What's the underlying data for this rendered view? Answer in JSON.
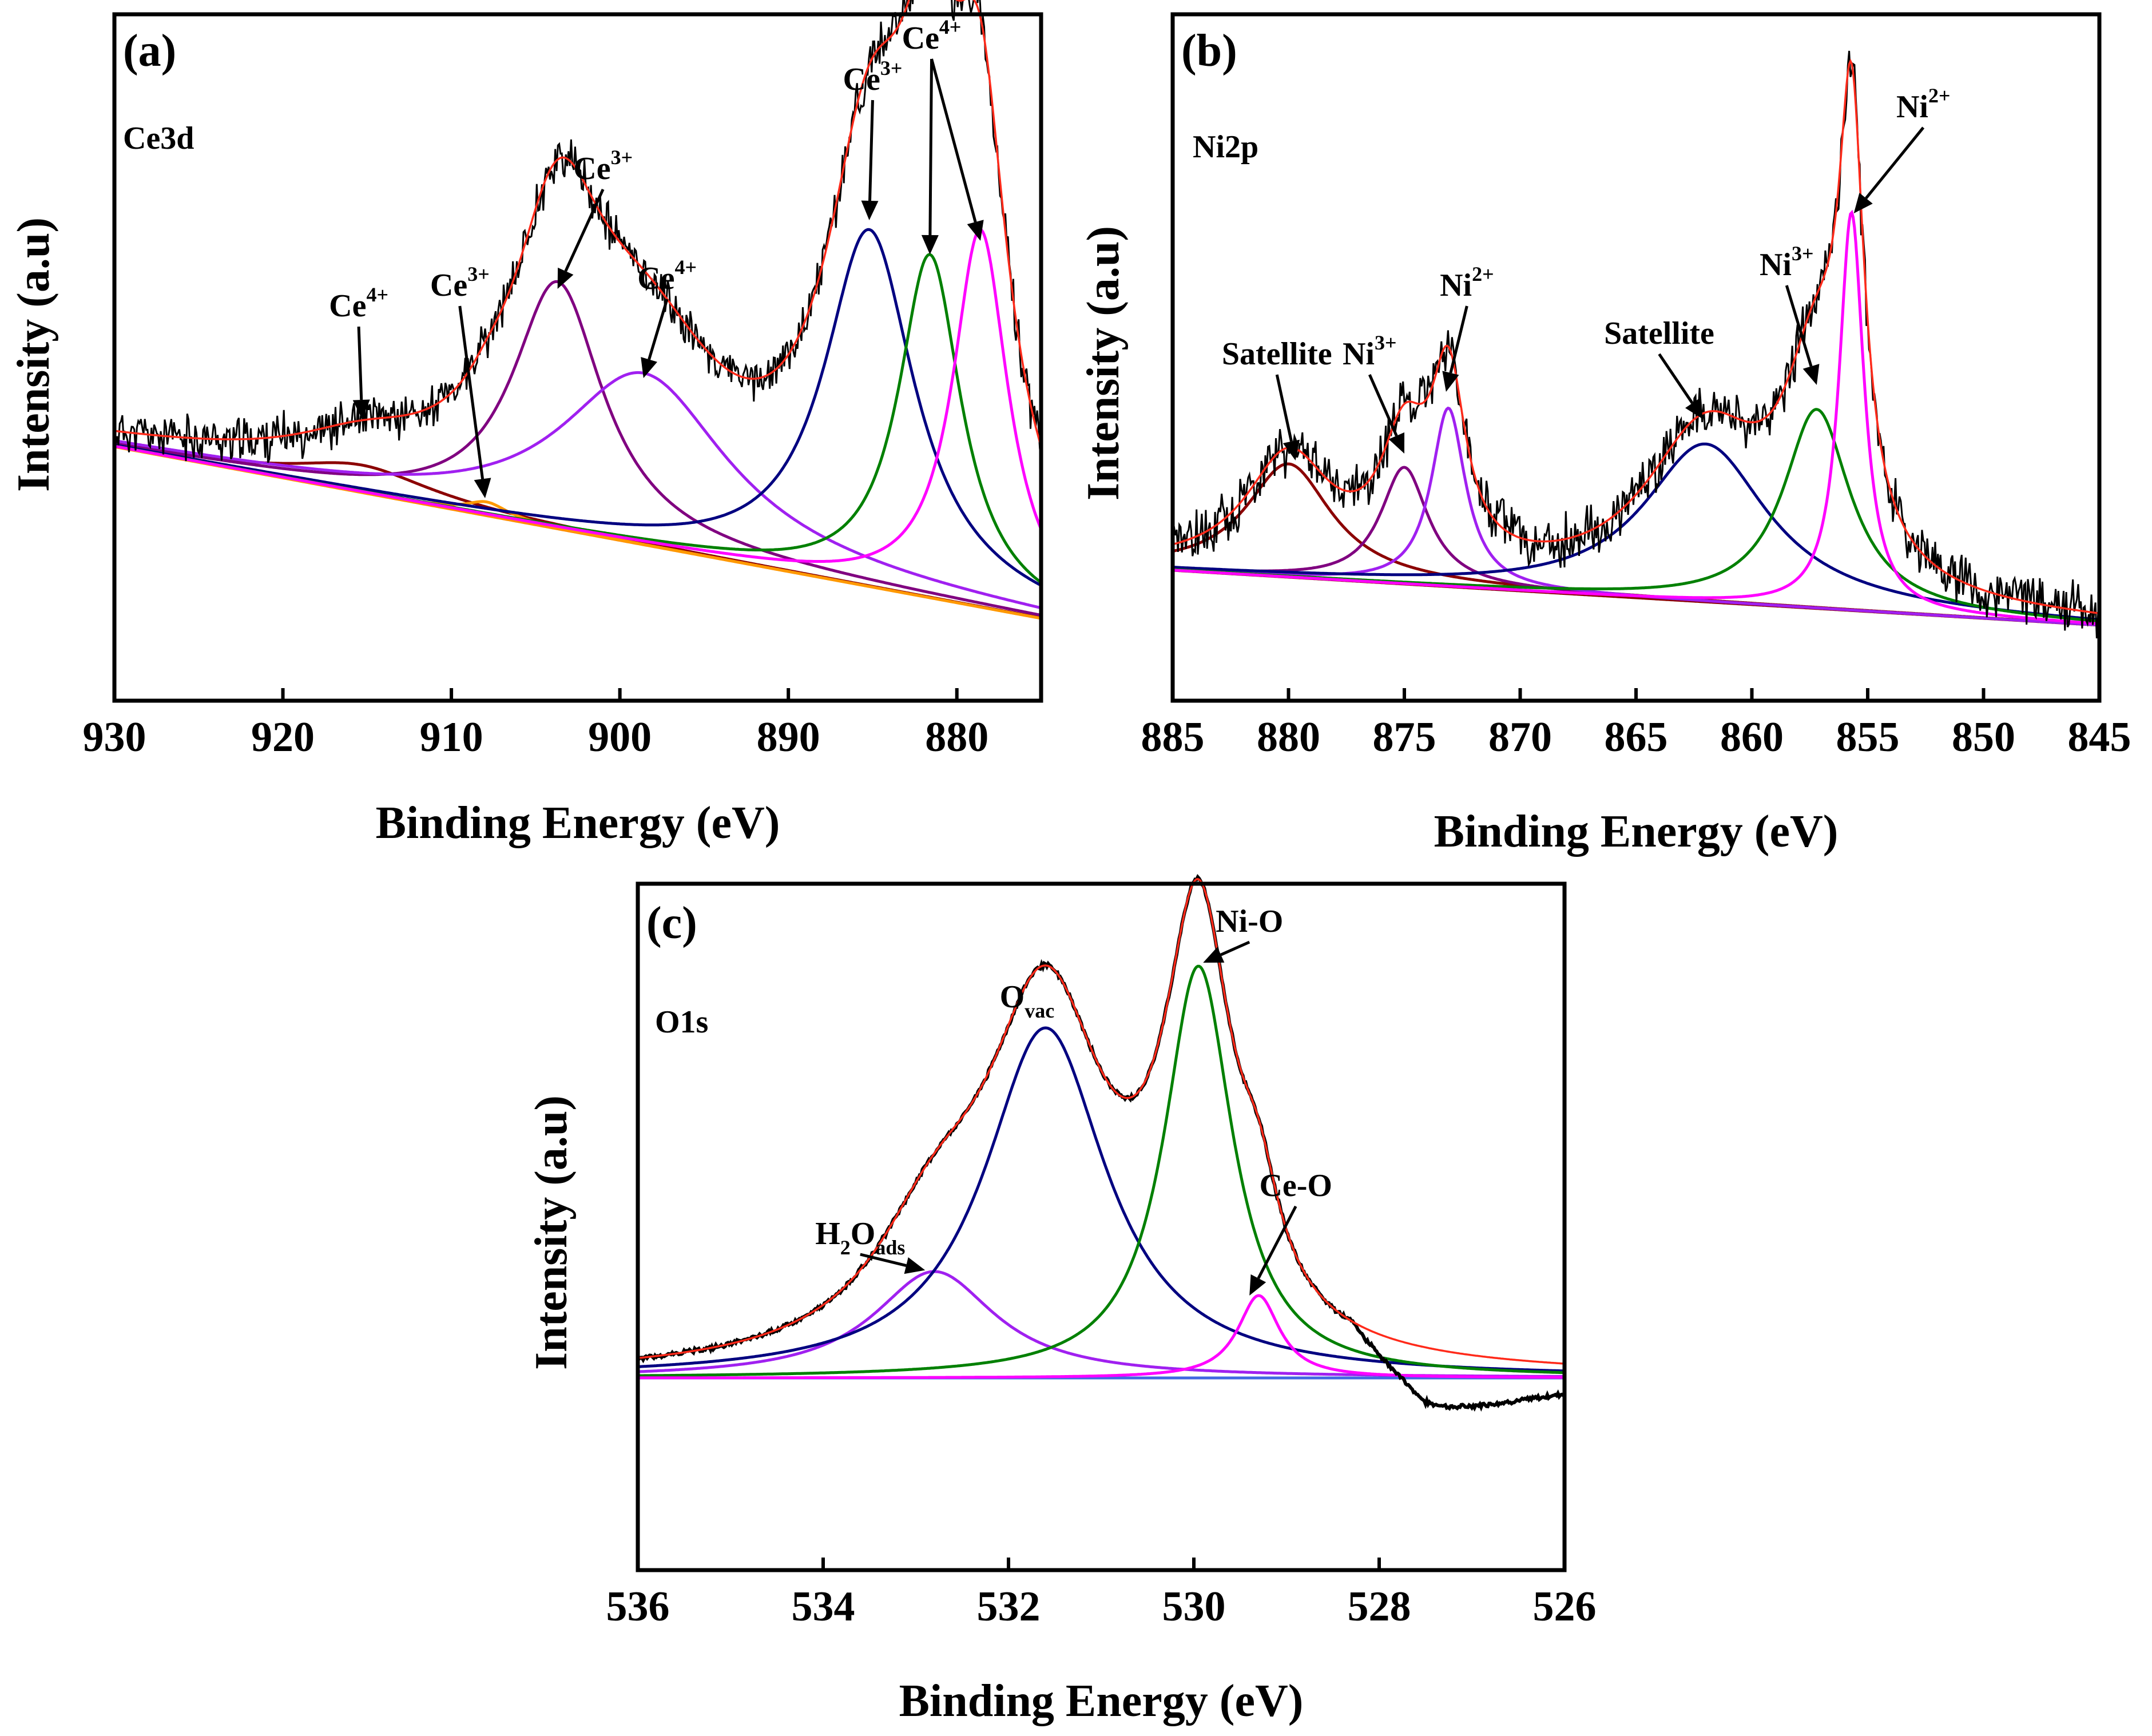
{
  "chart_data": [
    {
      "id": "a",
      "type": "line",
      "panel_label": "(a)",
      "region": "Ce3d",
      "xlabel": "Binding Energy (eV)",
      "ylabel": "Intensity (a.u)",
      "xlim": [
        930,
        875
      ],
      "ylim": [
        0,
        100
      ],
      "xticks": [
        930,
        920,
        910,
        900,
        890,
        880
      ],
      "background": {
        "color": "#ff8c00",
        "y_at_start": 37,
        "y_at_end": 12
      },
      "raw_data": {
        "color": "#000000",
        "noise": 2.6
      },
      "envelope": {
        "color": "#ff2a1a"
      },
      "components": [
        {
          "name": "Ce4+",
          "center": 915.3,
          "height": 4,
          "width": 10.0,
          "color": "#8b0000"
        },
        {
          "name": "Ce3+",
          "center": 907.9,
          "height": 2,
          "width": 3.0,
          "color": "#ff9900"
        },
        {
          "name": "Ce3+",
          "center": 903.7,
          "height": 36,
          "width": 6.5,
          "color": "#800080"
        },
        {
          "name": "Ce4+",
          "center": 898.6,
          "height": 25,
          "width": 12.0,
          "color": "#a020f0"
        },
        {
          "name": "Ce3+",
          "center": 885.2,
          "height": 52,
          "width": 6.5,
          "color": "#000080"
        },
        {
          "name": "Ce4+",
          "center": 881.6,
          "height": 50,
          "width": 4.5,
          "color": "#008000"
        },
        {
          "name": "Ce4+",
          "center": 878.6,
          "height": 55,
          "width": 4.0,
          "color": "#ff00ff"
        }
      ],
      "annotations": [
        {
          "base": "Ce",
          "sup": "4+",
          "x": 915.5,
          "y": 56,
          "tx": 915.3,
          "ty": 41
        },
        {
          "base": "Ce",
          "sup": "3+",
          "x": 909.5,
          "y": 59,
          "tx": 908.0,
          "ty": 29.5
        },
        {
          "base": "Ce",
          "sup": "3+",
          "x": 901.0,
          "y": 76,
          "tx": 903.7,
          "ty": 60
        },
        {
          "base": "Ce",
          "sup": "4+",
          "x": 897.2,
          "y": 60,
          "tx": 898.6,
          "ty": 47
        },
        {
          "base": "Ce",
          "sup": "3+",
          "x": 885.0,
          "y": 89,
          "tx": 885.2,
          "ty": 70
        },
        {
          "base": "Ce",
          "sup": "4+",
          "x": 881.5,
          "y": 95,
          "tx": 881.6,
          "ty": 65
        },
        {
          "base": "Ce",
          "sup": "4+",
          "x": 881.5,
          "y": 95,
          "tx": 878.6,
          "ty": 67
        }
      ]
    },
    {
      "id": "b",
      "type": "line",
      "panel_label": "(b)",
      "region": "Ni2p",
      "xlabel": "Binding Energy (eV)",
      "ylabel": "Intensity (a.u)",
      "xlim": [
        885,
        845
      ],
      "ylim": [
        0,
        100
      ],
      "xticks": [
        885,
        880,
        875,
        870,
        865,
        860,
        855,
        850,
        845
      ],
      "background": {
        "color": "#8b0000",
        "y_at_start": 19,
        "y_at_end": 11
      },
      "raw_data": {
        "color": "#000000",
        "noise": 3.0
      },
      "envelope": {
        "color": "#ff2a1a"
      },
      "components": [
        {
          "name": "Satellite",
          "center": 880.0,
          "height": 16.5,
          "width": 4.5,
          "color": "#8b0000"
        },
        {
          "name": "Ni3+",
          "center": 875.0,
          "height": 17,
          "width": 2.5,
          "color": "#800080"
        },
        {
          "name": "Ni2+",
          "center": 873.1,
          "height": 26,
          "width": 1.8,
          "color": "#a020f0"
        },
        {
          "name": "Satellite",
          "center": 862.0,
          "height": 23,
          "width": 6.5,
          "color": "#000080"
        },
        {
          "name": "Ni3+",
          "center": 857.2,
          "height": 29,
          "width": 3.5,
          "color": "#008000"
        },
        {
          "name": "Ni2+",
          "center": 855.7,
          "height": 58,
          "width": 1.3,
          "color": "#ff00ff"
        }
      ],
      "annotations": [
        {
          "base": "Satellite",
          "sup": "",
          "x": 880.5,
          "y": 49,
          "tx": 879.7,
          "ty": 35
        },
        {
          "base": "Ni",
          "sup": "3+",
          "x": 876.5,
          "y": 49,
          "tx": 875.0,
          "ty": 36
        },
        {
          "base": "Ni",
          "sup": "2+",
          "x": 872.3,
          "y": 59,
          "tx": 873.2,
          "ty": 45
        },
        {
          "base": "Satellite",
          "sup": "",
          "x": 864.0,
          "y": 52,
          "tx": 862.1,
          "ty": 41
        },
        {
          "base": "Ni",
          "sup": "3+",
          "x": 858.5,
          "y": 62,
          "tx": 857.2,
          "ty": 46
        },
        {
          "base": "Ni",
          "sup": "2+",
          "x": 852.6,
          "y": 85,
          "tx": 855.6,
          "ty": 71
        }
      ]
    },
    {
      "id": "c",
      "type": "line",
      "panel_label": "(c)",
      "region": "O1s",
      "xlabel": "Binding Energy (eV)",
      "ylabel": "Intensity (a.u)",
      "xlim": [
        536,
        526
      ],
      "ylim": [
        0,
        100
      ],
      "xticks": [
        536,
        534,
        532,
        530,
        528,
        526
      ],
      "background": {
        "color": "#4169e1",
        "y_at_start": 28,
        "y_at_end": 28
      },
      "raw_data": {
        "color": "#000000",
        "noise": 0.25
      },
      "envelope": {
        "color": "#ff2a1a"
      },
      "components": [
        {
          "name": "H2Oads",
          "center": 532.8,
          "height": 15.5,
          "width": 1.6,
          "color": "#a020f0"
        },
        {
          "name": "Ovac",
          "center": 531.6,
          "height": 51,
          "width": 1.6,
          "color": "#000080"
        },
        {
          "name": "Ni-O",
          "center": 529.95,
          "height": 60,
          "width": 0.9,
          "color": "#008000"
        },
        {
          "name": "Ce-O",
          "center": 529.3,
          "height": 12,
          "width": 0.55,
          "color": "#ff00ff"
        }
      ],
      "annotations": [
        {
          "base": "H",
          "sub1": "2",
          "mid": "O",
          "sub": "ads",
          "x": 533.6,
          "y": 47.5,
          "tx": 532.9,
          "ty": 43.7
        },
        {
          "base": "O",
          "sub": "vac",
          "x": 531.8,
          "y": 82,
          "tx": 0,
          "ty": 0
        },
        {
          "base": "Ni-O",
          "sup": "",
          "x": 529.4,
          "y": 93,
          "tx": 529.9,
          "ty": 88.5
        },
        {
          "base": "Ce-O",
          "sup": "",
          "x": 528.9,
          "y": 54.5,
          "tx": 529.4,
          "ty": 40
        }
      ]
    }
  ]
}
